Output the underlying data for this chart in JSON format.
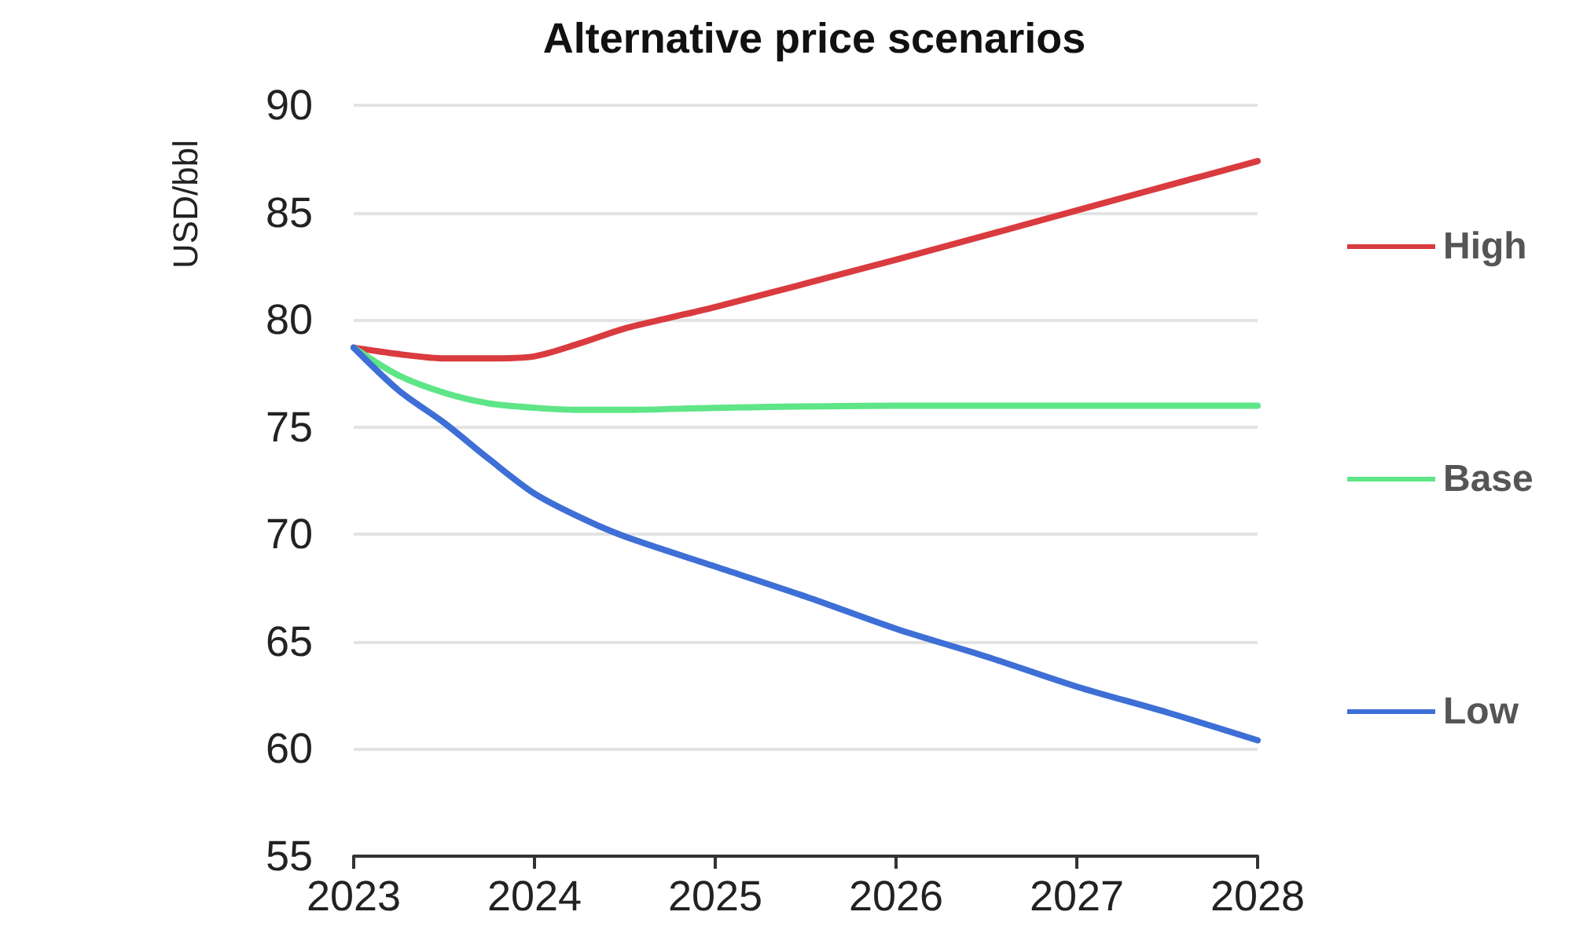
{
  "chart_data": {
    "type": "line",
    "title": "Alternative price scenarios",
    "ylabel": "USD/bbl",
    "series": [
      {
        "name": "High",
        "color": "#d93b3f",
        "x": [
          2023,
          2023.25,
          2023.5,
          2023.75,
          2024,
          2024.25,
          2024.5,
          2024.75,
          2025,
          2026,
          2027,
          2028
        ],
        "values": [
          78.7,
          78.4,
          78.2,
          78.2,
          78.3,
          78.9,
          79.6,
          80.1,
          80.6,
          82.8,
          85.1,
          87.4
        ]
      },
      {
        "name": "Base",
        "color": "#5ee587",
        "x": [
          2023,
          2023.25,
          2023.5,
          2023.75,
          2024,
          2024.25,
          2024.5,
          2025,
          2026,
          2027,
          2028
        ],
        "values": [
          78.7,
          77.4,
          76.6,
          76.1,
          75.9,
          75.8,
          75.8,
          75.9,
          76.0,
          76.0,
          76.0
        ]
      },
      {
        "name": "Low",
        "color": "#3e6fd6",
        "x": [
          2023,
          2023.25,
          2023.5,
          2023.75,
          2024,
          2024.25,
          2024.5,
          2025,
          2025.5,
          2026,
          2026.5,
          2027,
          2027.5,
          2028
        ],
        "values": [
          78.7,
          76.7,
          75.2,
          73.5,
          71.9,
          70.8,
          69.9,
          68.5,
          67.1,
          65.6,
          64.3,
          62.9,
          61.7,
          60.4
        ]
      }
    ],
    "xlim": [
      2023,
      2028
    ],
    "xticks": [
      2023,
      2024,
      2025,
      2026,
      2027,
      2028
    ],
    "ylim": [
      55,
      90
    ],
    "yticks": [
      55,
      60,
      65,
      70,
      75,
      80,
      85,
      90
    ],
    "grid": "y",
    "legend": "right",
    "marker": "none",
    "line_style": "solid"
  }
}
